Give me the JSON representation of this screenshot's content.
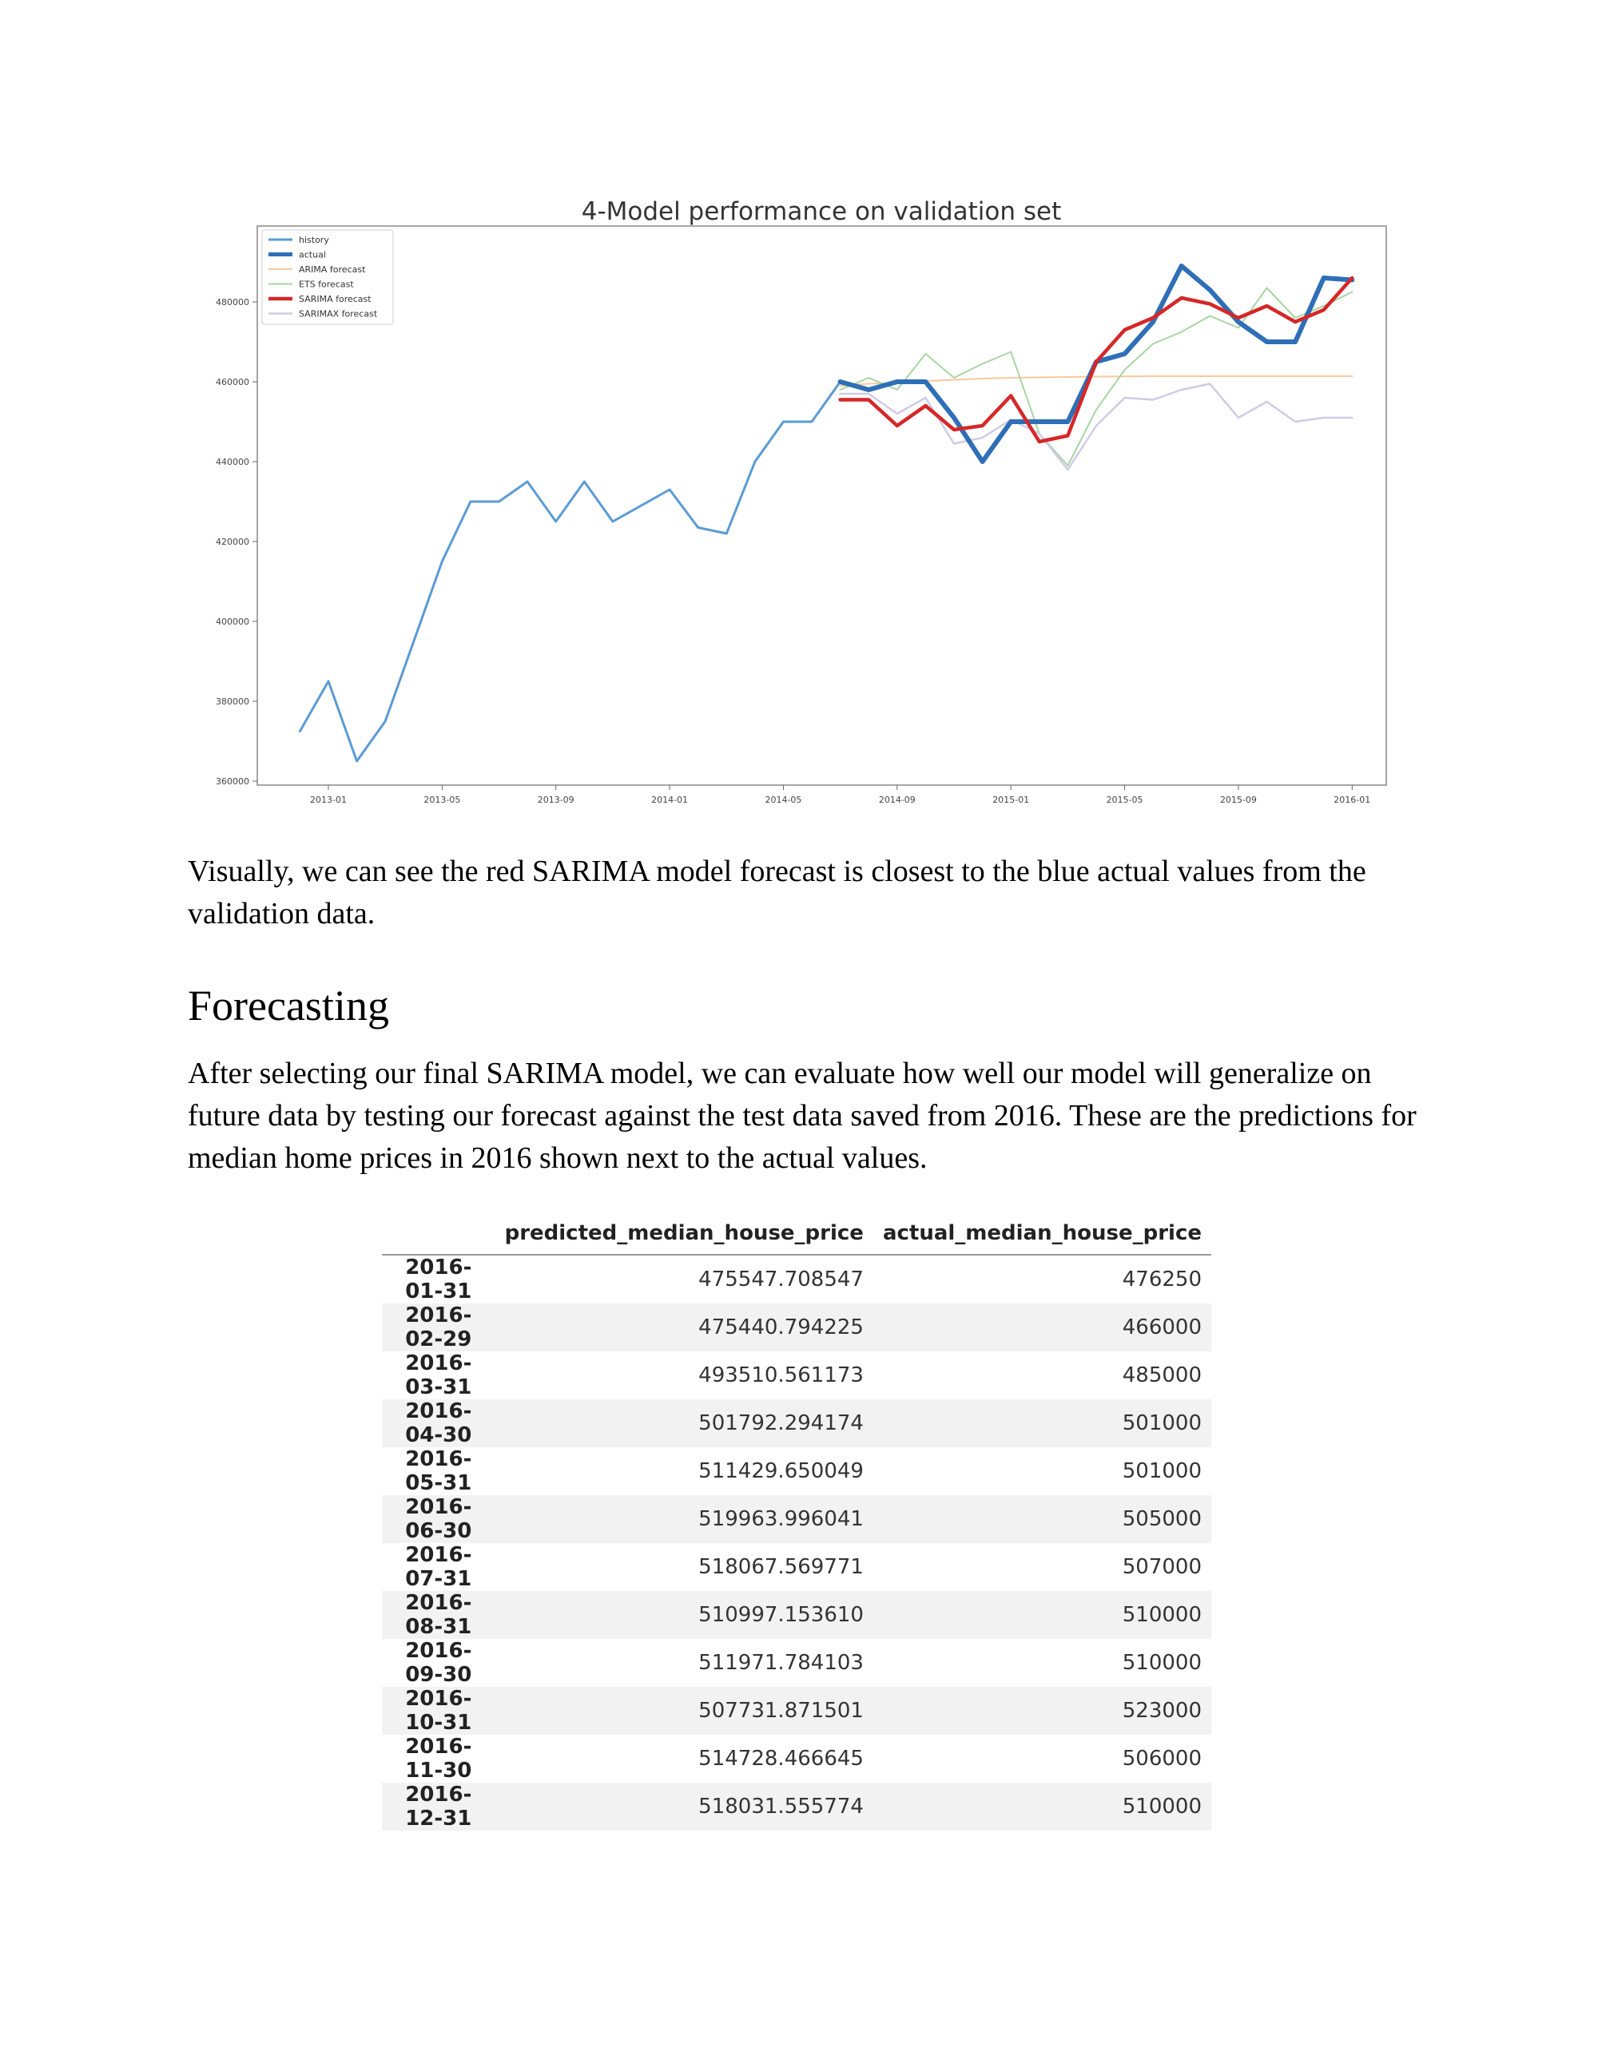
{
  "paragraph1": "Visually, we can see the red SARIMA model forecast is closest to the blue actual values from the validation data.",
  "heading": "Forecasting",
  "paragraph2": "After selecting our final SARIMA model, we can evaluate how well our model will generalize on future data by testing our forecast against the test data saved from 2016. These are the predictions for median home prices in 2016 shown next to the actual values.",
  "table": {
    "columns": [
      "",
      "predicted_median_house_price",
      "actual_median_house_price"
    ],
    "rows": [
      [
        "2016-01-31",
        "475547.708547",
        "476250"
      ],
      [
        "2016-02-29",
        "475440.794225",
        "466000"
      ],
      [
        "2016-03-31",
        "493510.561173",
        "485000"
      ],
      [
        "2016-04-30",
        "501792.294174",
        "501000"
      ],
      [
        "2016-05-31",
        "511429.650049",
        "501000"
      ],
      [
        "2016-06-30",
        "519963.996041",
        "505000"
      ],
      [
        "2016-07-31",
        "518067.569771",
        "507000"
      ],
      [
        "2016-08-31",
        "510997.153610",
        "510000"
      ],
      [
        "2016-09-30",
        "511971.784103",
        "510000"
      ],
      [
        "2016-10-31",
        "507731.871501",
        "523000"
      ],
      [
        "2016-11-30",
        "514728.466645",
        "506000"
      ],
      [
        "2016-12-31",
        "518031.555774",
        "510000"
      ]
    ]
  },
  "chart_data": {
    "type": "line",
    "title": "4-Model performance on validation set",
    "xlabel": "",
    "ylabel": "",
    "x_ticks": [
      "2013-01",
      "2013-05",
      "2013-09",
      "2014-01",
      "2014-05",
      "2014-09",
      "2015-01",
      "2015-05",
      "2015-09",
      "2016-01"
    ],
    "y_ticks": [
      360000,
      380000,
      400000,
      420000,
      440000,
      460000,
      480000
    ],
    "xlim": [
      "2012-10",
      "2016-02"
    ],
    "ylim": [
      359000,
      499000
    ],
    "legend": "top-left",
    "grid": false,
    "series": [
      {
        "name": "history",
        "color": "#5b9bd5",
        "x": [
          "2012-12",
          "2013-01",
          "2013-02",
          "2013-03",
          "2013-04",
          "2013-05",
          "2013-06",
          "2013-07",
          "2013-08",
          "2013-09",
          "2013-10",
          "2013-11",
          "2013-12",
          "2014-01",
          "2014-02",
          "2014-03",
          "2014-04",
          "2014-05",
          "2014-06",
          "2014-07",
          "2014-08"
        ],
        "values": [
          372500,
          385000,
          365000,
          375000,
          395000,
          415000,
          430000,
          430000,
          435000,
          425000,
          435000,
          425000,
          429000,
          433000,
          423500,
          422000,
          440000,
          450000,
          450000,
          460000,
          458000
        ]
      },
      {
        "name": "actual",
        "color": "#2e6fb7",
        "x": [
          "2014-07",
          "2014-08",
          "2014-09",
          "2014-10",
          "2014-11",
          "2014-12",
          "2015-01",
          "2015-02",
          "2015-03",
          "2015-04",
          "2015-05",
          "2015-06",
          "2015-07",
          "2015-08",
          "2015-09",
          "2015-10",
          "2015-11",
          "2015-12",
          "2016-01"
        ],
        "values": [
          460000,
          458000,
          460000,
          460000,
          451000,
          440000,
          450000,
          450000,
          450000,
          465000,
          467000,
          475000,
          489000,
          483000,
          475000,
          470000,
          470000,
          486000,
          485500
        ]
      },
      {
        "name": "ARIMA forecast",
        "color": "#f9c89b",
        "x": [
          "2014-07",
          "2014-08",
          "2014-09",
          "2014-10",
          "2014-11",
          "2014-12",
          "2015-01",
          "2015-02",
          "2015-03",
          "2015-04",
          "2015-05",
          "2015-06",
          "2015-07",
          "2015-08",
          "2015-09",
          "2015-10",
          "2015-11",
          "2015-12",
          "2016-01"
        ],
        "values": [
          459000,
          459500,
          459800,
          460200,
          460500,
          460800,
          461000,
          461100,
          461200,
          461300,
          461350,
          461400,
          461400,
          461400,
          461400,
          461400,
          461400,
          461400,
          461400
        ]
      },
      {
        "name": "ETS forecast",
        "color": "#a8d5a2",
        "x": [
          "2014-07",
          "2014-08",
          "2014-09",
          "2014-10",
          "2014-11",
          "2014-12",
          "2015-01",
          "2015-02",
          "2015-03",
          "2015-04",
          "2015-05",
          "2015-06",
          "2015-07",
          "2015-08",
          "2015-09",
          "2015-10",
          "2015-11",
          "2015-12",
          "2016-01"
        ],
        "values": [
          458000,
          461000,
          458000,
          467000,
          461000,
          464500,
          467500,
          447000,
          439000,
          453000,
          463000,
          469500,
          472500,
          476500,
          473500,
          483500,
          476000,
          479000,
          482500
        ]
      },
      {
        "name": "SARIMA forecast",
        "color": "#d62728",
        "x": [
          "2014-07",
          "2014-08",
          "2014-09",
          "2014-10",
          "2014-11",
          "2014-12",
          "2015-01",
          "2015-02",
          "2015-03",
          "2015-04",
          "2015-05",
          "2015-06",
          "2015-07",
          "2015-08",
          "2015-09",
          "2015-10",
          "2015-11",
          "2015-12",
          "2016-01"
        ],
        "values": [
          455500,
          455500,
          449000,
          454000,
          448000,
          449000,
          456500,
          445000,
          446500,
          465000,
          473000,
          476000,
          481000,
          479500,
          476000,
          479000,
          475000,
          478000,
          486000
        ]
      },
      {
        "name": "SARIMAX forecast",
        "color": "#cfcbe6",
        "x": [
          "2014-07",
          "2014-08",
          "2014-09",
          "2014-10",
          "2014-11",
          "2014-12",
          "2015-01",
          "2015-02",
          "2015-03",
          "2015-04",
          "2015-05",
          "2015-06",
          "2015-07",
          "2015-08",
          "2015-09",
          "2015-10",
          "2015-11",
          "2015-12",
          "2016-01"
        ],
        "values": [
          457000,
          457000,
          452000,
          456000,
          444500,
          446000,
          450500,
          447000,
          438000,
          449000,
          456000,
          455500,
          458000,
          459500,
          451000,
          455000,
          450000,
          451000,
          451000
        ]
      }
    ]
  }
}
